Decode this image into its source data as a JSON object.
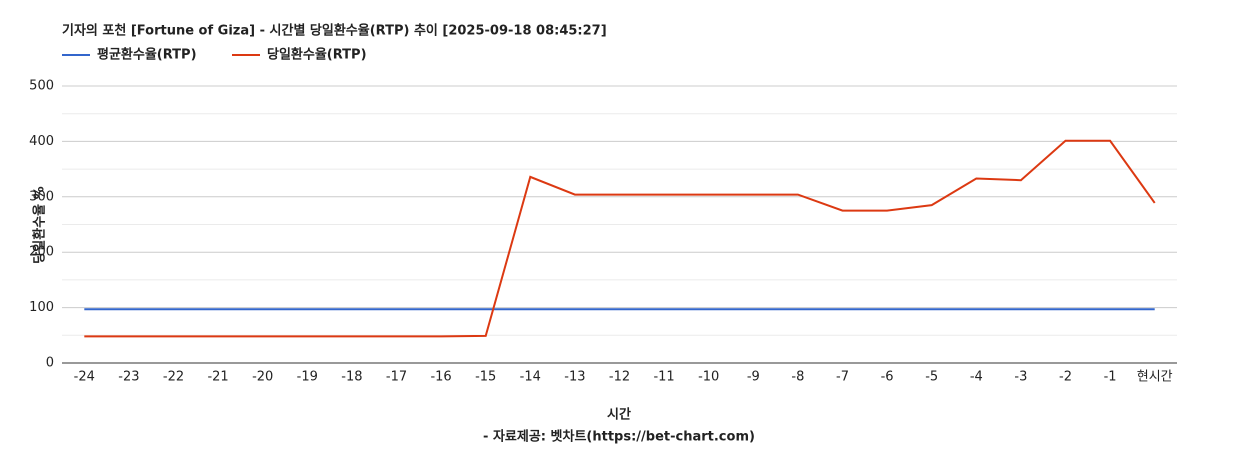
{
  "chart_data": {
    "type": "line",
    "title": "기자의 포천 [Fortune of Giza] - 시간별 당일환수율(RTP) 추이 [2025-09-18 08:45:27]",
    "x_label": "시간",
    "source": "- 자료제공: 벳차트(https://bet-chart.com)",
    "y_label": "당일환수율 %",
    "categories": [
      "-24",
      "-23",
      "-22",
      "-21",
      "-20",
      "-19",
      "-18",
      "-17",
      "-16",
      "-15",
      "-14",
      "-13",
      "-12",
      "-11",
      "-10",
      "-9",
      "-8",
      "-7",
      "-6",
      "-5",
      "-4",
      "-3",
      "-2",
      "-1",
      "현시간"
    ],
    "series": [
      {
        "name": "평균환수율(RTP)",
        "color": "#3366cc",
        "values": [
          97,
          97,
          97,
          97,
          97,
          97,
          97,
          97,
          97,
          97,
          97,
          97,
          97,
          97,
          97,
          97,
          97,
          97,
          97,
          97,
          97,
          97,
          97,
          97,
          97
        ]
      },
      {
        "name": "당일환수율(RTP)",
        "color": "#dc3912",
        "values": [
          48,
          48,
          48,
          48,
          48,
          48,
          48,
          48,
          48,
          49,
          336,
          304,
          304,
          304,
          304,
          304,
          304,
          275,
          275,
          285,
          333,
          330,
          401,
          401,
          289
        ]
      }
    ],
    "ylim": [
      0,
      500
    ],
    "yticks": [
      0,
      100,
      200,
      300,
      400,
      500
    ],
    "grid": true,
    "minor_grid": true,
    "legend": "top-left"
  }
}
